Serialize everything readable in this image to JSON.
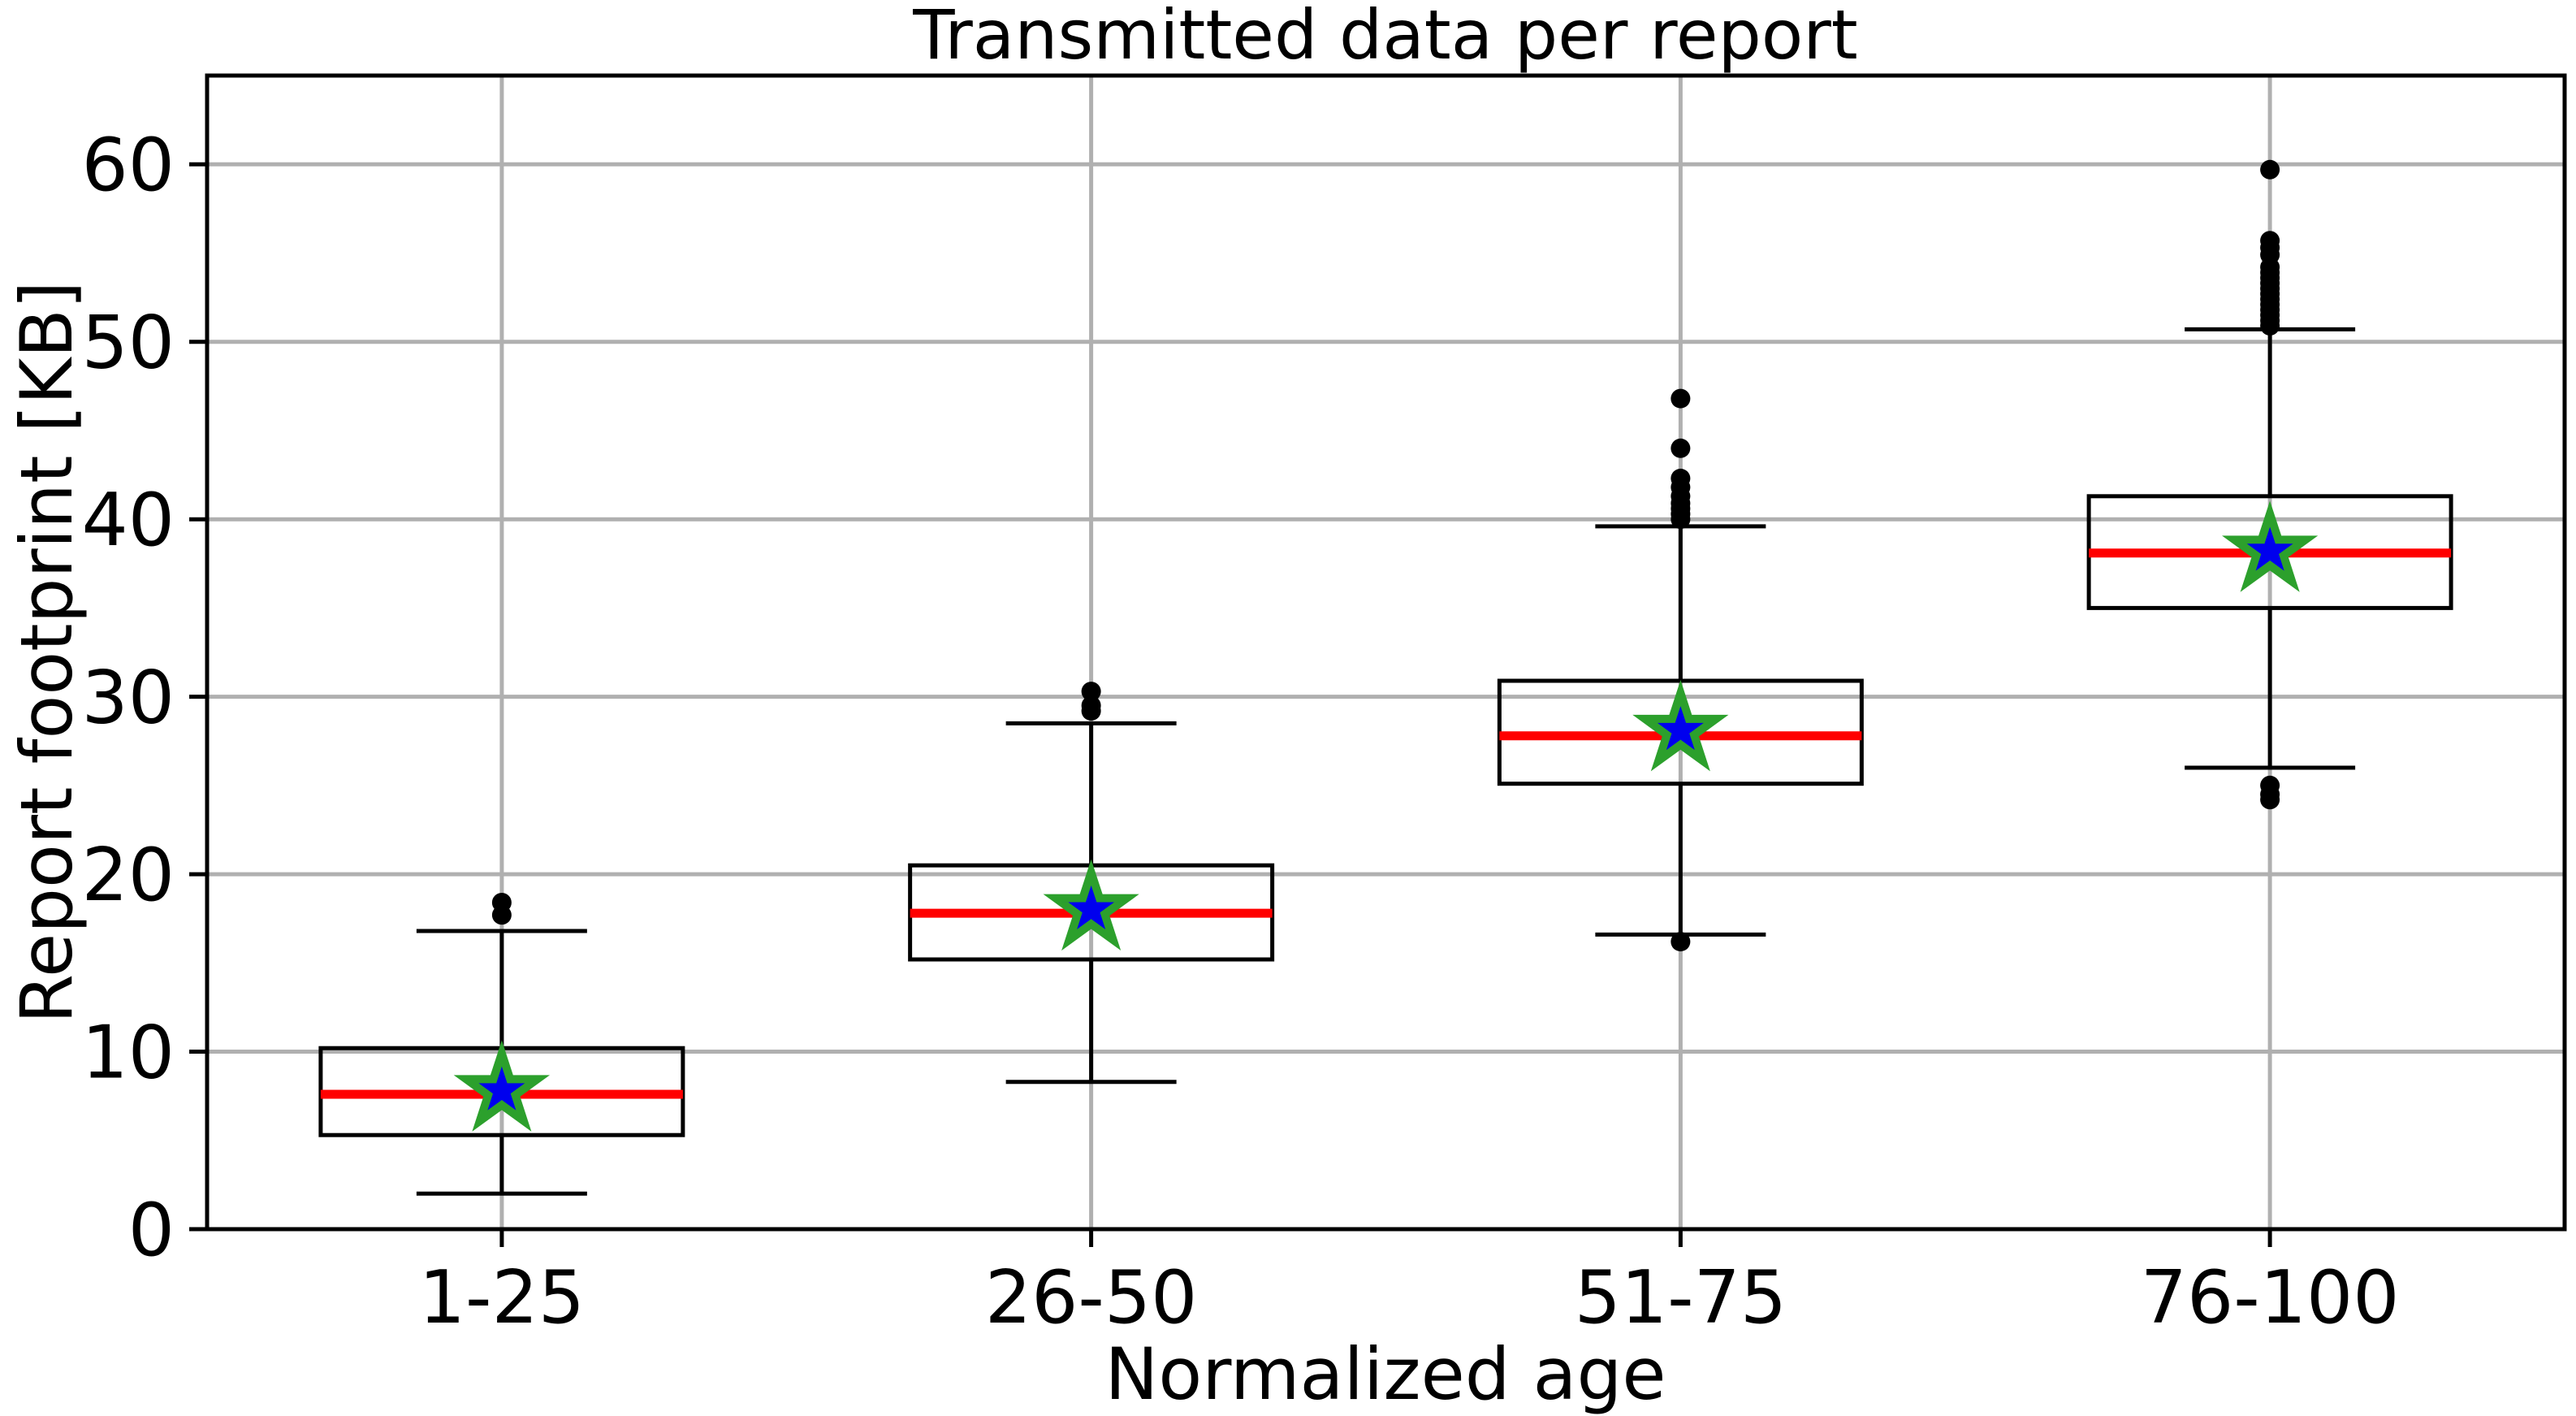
{
  "chart_data": {
    "type": "boxplot",
    "title": "Transmitted data per report",
    "xlabel": "Normalized age",
    "ylabel": "Report footprint [KB]",
    "categories": [
      "1-25",
      "26-50",
      "51-75",
      "76-100"
    ],
    "ytick_values": [
      0,
      10,
      20,
      30,
      40,
      50,
      60
    ],
    "ytick_labels": [
      "0",
      "10",
      "20",
      "30",
      "40",
      "50",
      "60"
    ],
    "ylim": [
      0,
      65
    ],
    "grid": true,
    "legend": "none",
    "colors": {
      "box_edge": "#000000",
      "whisker": "#000000",
      "median_line": "#ff0000",
      "mean_star_fill": "#0000ee",
      "mean_star_edge": "#2ca02c",
      "outlier": "#000000",
      "grid_line": "#b0b0b0",
      "background": "#ffffff"
    },
    "series": [
      {
        "category": "1-25",
        "whisker_low": 2.0,
        "q1": 5.3,
        "median": 7.6,
        "q3": 10.2,
        "whisker_high": 16.8,
        "mean": 7.8,
        "outliers": [
          17.7,
          18.4
        ]
      },
      {
        "category": "26-50",
        "whisker_low": 8.3,
        "q1": 15.2,
        "median": 17.8,
        "q3": 20.5,
        "whisker_high": 28.5,
        "mean": 18.0,
        "outliers": [
          29.2,
          29.5,
          30.3
        ]
      },
      {
        "category": "51-75",
        "whisker_low": 16.6,
        "q1": 25.1,
        "median": 27.8,
        "q3": 30.9,
        "whisker_high": 39.6,
        "mean": 28.1,
        "outliers": [
          16.2,
          40.0,
          40.3,
          40.6,
          40.9,
          41.3,
          41.8,
          42.3,
          44.0,
          46.8
        ]
      },
      {
        "category": "76-100",
        "whisker_low": 26.0,
        "q1": 35.0,
        "median": 38.1,
        "q3": 41.3,
        "whisker_high": 50.7,
        "mean": 38.2,
        "outliers": [
          24.2,
          24.5,
          25.0,
          50.9,
          51.2,
          51.5,
          51.8,
          52.1,
          52.4,
          52.7,
          53.0,
          53.3,
          53.6,
          53.9,
          54.2,
          54.9,
          55.3,
          55.7,
          59.7
        ]
      }
    ]
  }
}
